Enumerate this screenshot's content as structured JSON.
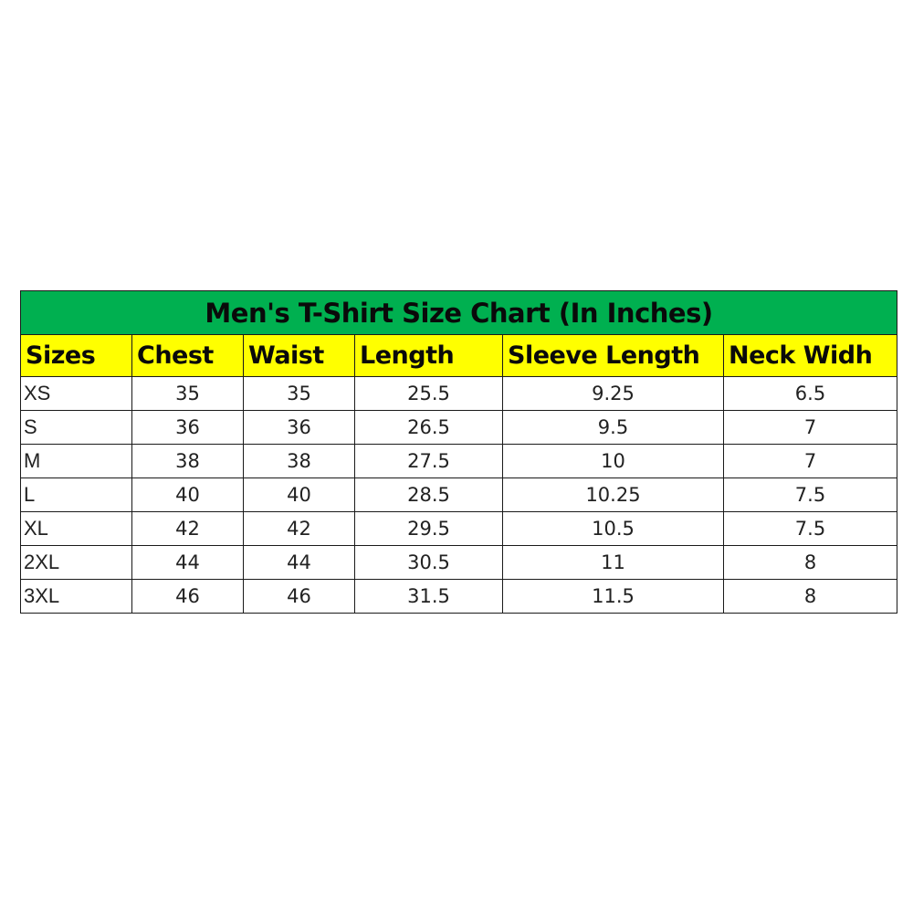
{
  "title": "Men's T-Shirt Size Chart (In Inches)",
  "colors": {
    "title_bg": "#00b050",
    "header_bg": "#ffff00"
  },
  "headers": [
    "Sizes",
    "Chest",
    "Waist",
    "Length",
    "Sleeve Length",
    "Neck Widh"
  ],
  "rows": [
    [
      "XS",
      "35",
      "35",
      "25.5",
      "9.25",
      "6.5"
    ],
    [
      "S",
      "36",
      "36",
      "26.5",
      "9.5",
      "7"
    ],
    [
      "M",
      "38",
      "38",
      "27.5",
      "10",
      "7"
    ],
    [
      "L",
      "40",
      "40",
      "28.5",
      "10.25",
      "7.5"
    ],
    [
      "XL",
      "42",
      "42",
      "29.5",
      "10.5",
      "7.5"
    ],
    [
      "2XL",
      "44",
      "44",
      "30.5",
      "11",
      "8"
    ],
    [
      "3XL",
      "46",
      "46",
      "31.5",
      "11.5",
      "8"
    ]
  ]
}
